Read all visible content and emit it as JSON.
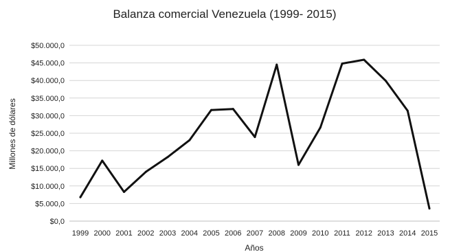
{
  "chart_data": {
    "type": "line",
    "title": "Balanza comercial Venezuela (1999- 2015)",
    "xlabel": "Años",
    "ylabel": "Millones de dólares",
    "categories": [
      "1999",
      "2000",
      "2001",
      "2002",
      "2003",
      "2004",
      "2005",
      "2006",
      "2007",
      "2008",
      "2009",
      "2010",
      "2011",
      "2012",
      "2013",
      "2014",
      "2015"
    ],
    "series": [
      {
        "values": [
          6800,
          17200,
          8300,
          14000,
          18200,
          23000,
          31600,
          31900,
          23900,
          44500,
          16000,
          26600,
          44800,
          45900,
          39900,
          31400,
          3600
        ]
      }
    ],
    "ylim": [
      0,
      50000
    ],
    "yticks": [
      "$0,0",
      "$5.000,0",
      "$10.000,0",
      "$15.000,0",
      "$20.000,0",
      "$25.000,0",
      "$30.000,0",
      "$35.000,0",
      "$40.000,0",
      "$45.000,0",
      "$50.000,0"
    ],
    "grid": true,
    "colors": {
      "line": "#111111",
      "grid": "#d4d4d4",
      "axis": "#bdbdbd"
    }
  }
}
